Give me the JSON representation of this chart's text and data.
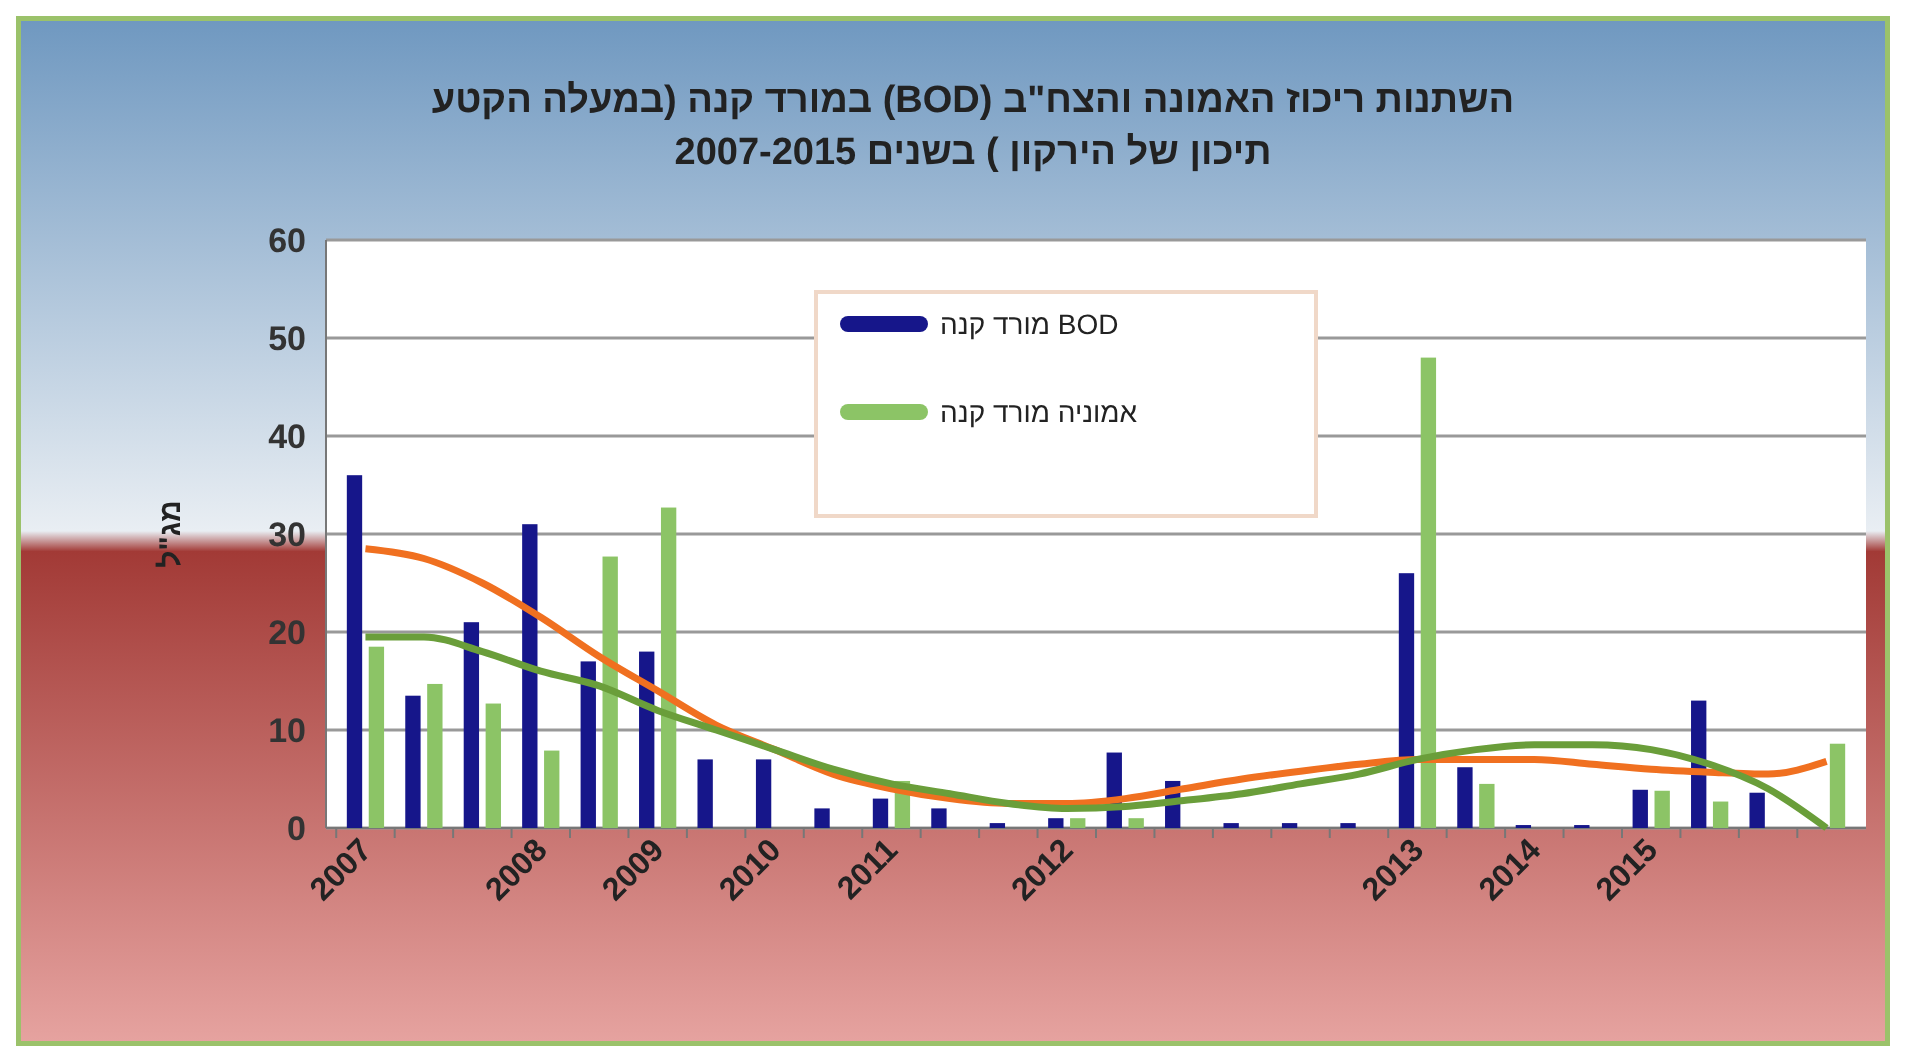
{
  "chart_data": {
    "type": "bar",
    "title": "השתנות ריכוז האמונה והצח\"ב (BOD) במורד קנה (במעלה הקטע\nתיכון של הירקון ) בשנים  2007-2015",
    "ylabel": "מג\"ל",
    "categories": [
      "2007",
      null,
      null,
      "2008",
      null,
      "2009",
      null,
      "2010",
      null,
      "2011",
      null,
      null,
      "2012",
      null,
      null,
      null,
      null,
      null,
      "2013",
      null,
      "2014",
      null,
      "2015",
      null,
      null,
      null
    ],
    "series": [
      {
        "name": "BOD מורד קנה",
        "color": "#16168a",
        "values": [
          36,
          13.5,
          21,
          31,
          17,
          18,
          7,
          7,
          2,
          3,
          2,
          0.5,
          1,
          7.7,
          4.8,
          0.5,
          0.5,
          0.5,
          26,
          6.2,
          0.3,
          0.3,
          3.9,
          13,
          3.6,
          0
        ]
      },
      {
        "name": "אמוניה מורד קנה",
        "color": "#8cc466",
        "values": [
          18.5,
          14.7,
          12.7,
          7.9,
          27.7,
          32.7,
          0,
          0,
          0,
          4.8,
          0,
          0,
          1,
          1,
          0,
          0,
          0,
          0,
          48,
          4.5,
          0,
          0,
          3.8,
          2.7,
          0,
          8.6
        ]
      },
      {
        "type": "line",
        "color": "#f07020",
        "values": [
          28.5,
          27.5,
          25,
          21.5,
          17.5,
          14,
          10.5,
          8,
          5.5,
          4,
          3,
          2.5,
          2.5,
          3,
          4,
          5,
          5.8,
          6.5,
          7,
          7,
          7,
          6.5,
          6,
          5.7,
          5.5,
          6.8
        ]
      },
      {
        "type": "line",
        "color": "#6a9e3a",
        "values": [
          19.5,
          19.5,
          18,
          16,
          14.5,
          12,
          10,
          8,
          6,
          4.5,
          3.5,
          2.5,
          2,
          2.2,
          2.8,
          3.5,
          4.5,
          5.5,
          7,
          8,
          8.5,
          8.5,
          8,
          6.5,
          4,
          0
        ]
      }
    ],
    "ylim": [
      0,
      60
    ],
    "yticks": [
      0,
      10,
      20,
      30,
      40,
      50,
      60
    ],
    "grid": "y",
    "legend": "top"
  }
}
